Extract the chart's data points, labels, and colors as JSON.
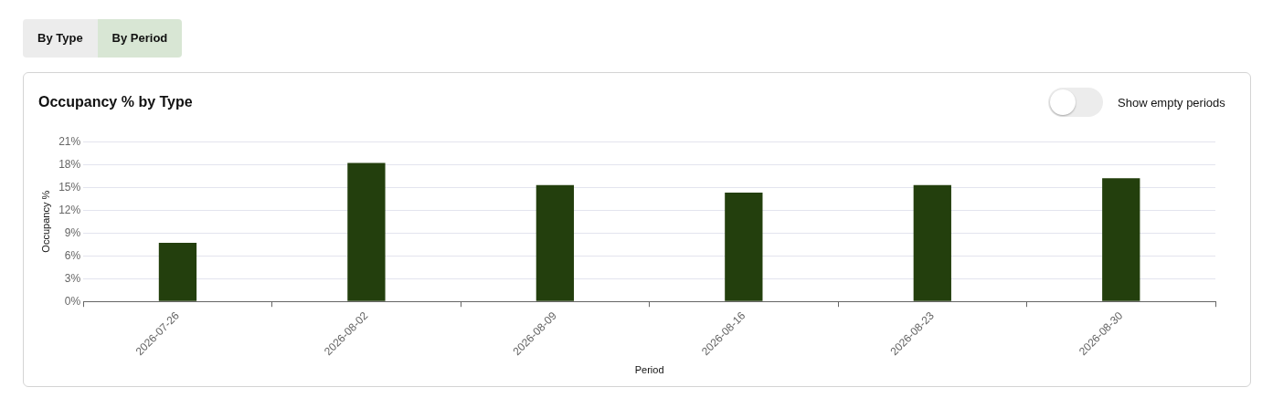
{
  "chart_data": {
    "type": "bar",
    "title": "Occupancy % by Type",
    "xlabel": "Period",
    "ylabel": "Occupancy %",
    "annotations": [
      "By Type",
      "By Period",
      "Show empty periods"
    ],
    "categories": [
      "2026-07-26",
      "2026-08-02",
      "2026-08-09",
      "2026-08-16",
      "2026-08-23",
      "2026-08-30"
    ],
    "values": [
      7.7,
      18.2,
      15.3,
      14.3,
      15.3,
      16.2
    ],
    "color": "#233f0d",
    "ylim": [
      0,
      21
    ],
    "yticks": [
      {
        "value": 0,
        "label": "0%"
      },
      {
        "value": 3,
        "label": "3%"
      },
      {
        "value": 6,
        "label": "6%"
      },
      {
        "value": 9,
        "label": "9%"
      },
      {
        "value": 12,
        "label": "12%"
      },
      {
        "value": 15,
        "label": "15%"
      },
      {
        "value": 18,
        "label": "18%"
      },
      {
        "value": 21,
        "label": "21%"
      }
    ],
    "grid": "y",
    "legend": false
  }
}
